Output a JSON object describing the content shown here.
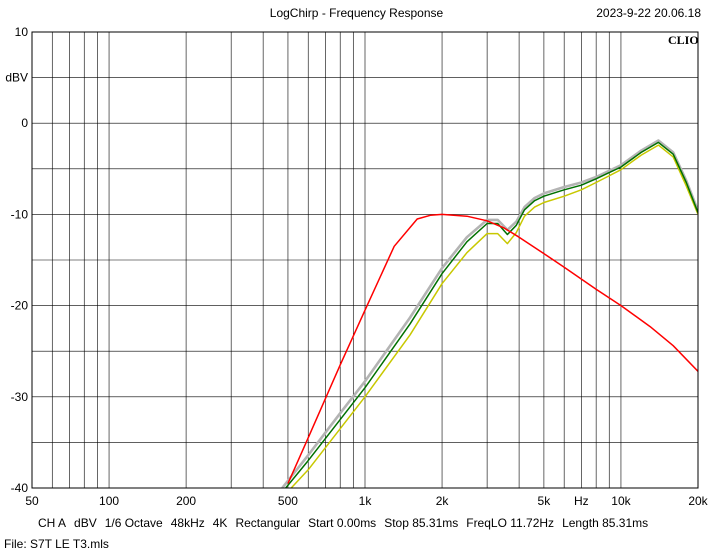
{
  "header": {
    "title": "LogChirp - Frequency Response",
    "timestamp": "2023-9-22 20.06.18",
    "brand": "CLIO"
  },
  "footer": {
    "settings": [
      "CH A",
      "dBV",
      "1/6 Octave",
      "48kHz",
      "4K",
      "Rectangular",
      "Start 0.00ms",
      "Stop 85.31ms",
      "FreqLO 11.72Hz",
      "Length 85.31ms"
    ],
    "file": "File: S7T LE T3.mls"
  },
  "chart_data": {
    "type": "line",
    "title": "LogChirp - Frequency Response",
    "xlabel": "Hz",
    "ylabel": "dBV",
    "x_scale": "log",
    "xlim": [
      50,
      20000
    ],
    "ylim": [
      -40,
      10
    ],
    "grid": true,
    "x_tick_labels": [
      "50",
      "100",
      "200",
      "500",
      "1k",
      "2k",
      "5k",
      "Hz",
      "10k",
      "20k"
    ],
    "y_tick_labels": [
      "10",
      "dBV",
      "0",
      "-10",
      "-20",
      "-30",
      "-40"
    ],
    "series": [
      {
        "color": "#ff0000",
        "x": [
          500,
          600,
          800,
          1000,
          1300,
          1600,
          1800,
          2000,
          2500,
          3000,
          3500,
          4000,
          5000,
          6000,
          8000,
          10000,
          13000,
          16000,
          20000
        ],
        "y": [
          -39.5,
          -34.5,
          -26.5,
          -20.5,
          -13.5,
          -10.5,
          -10.1,
          -10.0,
          -10.2,
          -10.7,
          -11.5,
          -12.5,
          -14.3,
          -15.8,
          -18.2,
          -20.0,
          -22.3,
          -24.4,
          -27.2
        ]
      },
      {
        "color": "#007000",
        "x": [
          490,
          600,
          800,
          1000,
          1500,
          2000,
          2500,
          3000,
          3300,
          3600,
          3900,
          4200,
          4600,
          5000,
          6000,
          7000,
          8000,
          10000,
          12000,
          14000,
          16000,
          18000,
          20000
        ],
        "y": [
          -40.0,
          -37.0,
          -32.5,
          -29.0,
          -22.0,
          -16.5,
          -13.0,
          -11.0,
          -11.0,
          -12.2,
          -11.2,
          -9.5,
          -8.5,
          -8.0,
          -7.3,
          -6.8,
          -6.1,
          -4.8,
          -3.2,
          -2.1,
          -3.4,
          -6.5,
          -9.8
        ]
      },
      {
        "color": "#c8c800",
        "x": [
          515,
          600,
          800,
          1000,
          1500,
          2000,
          2500,
          3000,
          3300,
          3600,
          3900,
          4200,
          4600,
          5000,
          6000,
          7000,
          8000,
          10000,
          12000,
          14000,
          16000,
          18000,
          20000
        ],
        "y": [
          -40.0,
          -38.0,
          -33.5,
          -30.0,
          -23.2,
          -17.6,
          -14.2,
          -12.1,
          -12.1,
          -13.2,
          -12.0,
          -10.2,
          -9.2,
          -8.7,
          -8.0,
          -7.3,
          -6.5,
          -5.1,
          -3.5,
          -2.4,
          -3.7,
          -6.9,
          -10.0
        ]
      },
      {
        "color": "#b4b4b4",
        "x": [
          475,
          600,
          800,
          1000,
          1500,
          2000,
          2500,
          3000,
          3300,
          3600,
          3900,
          4200,
          4600,
          5000,
          6000,
          7000,
          8000,
          10000,
          12000,
          14000,
          16000,
          18000,
          20000
        ],
        "y": [
          -40.0,
          -36.4,
          -31.8,
          -28.3,
          -21.3,
          -15.9,
          -12.5,
          -10.6,
          -10.6,
          -11.7,
          -10.8,
          -9.2,
          -8.2,
          -7.7,
          -7.0,
          -6.5,
          -5.9,
          -4.6,
          -3.0,
          -1.9,
          -3.2,
          -6.3,
          -9.6
        ]
      }
    ]
  }
}
